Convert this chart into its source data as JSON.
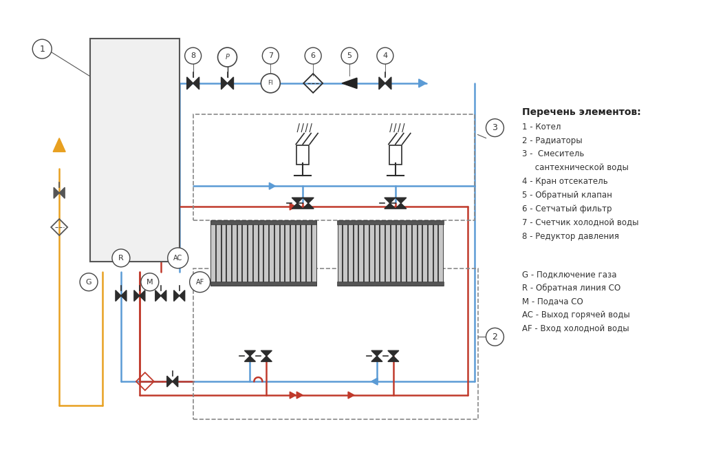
{
  "bg_color": "#ffffff",
  "legend_title": "Перечень элементов:",
  "legend_items_1": [
    "1 - Котел",
    "2 - Радиаторы",
    "3 -  Смеситель",
    "     сантехнической воды",
    "4 - Кран отсекатель",
    "5 - Обратный клапан",
    "6 - Сетчатый фильтр",
    "7 - Счетчик холодной воды",
    "8 - Редуктор давления"
  ],
  "legend_items_2": [
    "G - Подключение газа",
    "R - Обратная линия СО",
    "M - Подача СО",
    "AC - Выход горячей воды",
    "AF - Вход холодной воды"
  ],
  "blue_color": "#5b9bd5",
  "red_color": "#c0392b",
  "yellow_color": "#e8a020",
  "dark_color": "#2c2c2c",
  "gray_color": "#666666",
  "lw": 1.8
}
